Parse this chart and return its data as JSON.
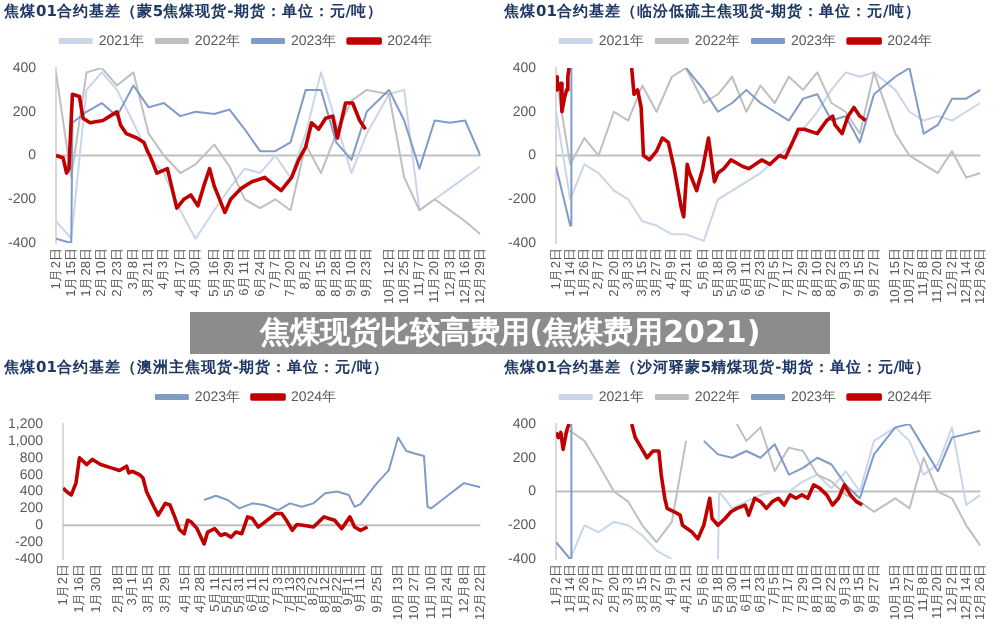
{
  "chart_data": [
    {
      "type": "line",
      "title": "焦煤01合约基差（蒙5焦煤现货-期货：单位：元/吨）",
      "legend": "top",
      "xlim": [
        "--01-02",
        "--12-29"
      ],
      "ylim": [
        -400,
        400
      ],
      "yticks": [
        -400,
        -200,
        0,
        200,
        400
      ],
      "xticks": [
        {
          "value": "--01-02",
          "label": "1月2日"
        },
        {
          "value": "--01-15",
          "label": "1月15日"
        },
        {
          "value": "--01-28",
          "label": "1月28日"
        },
        {
          "value": "--02-10",
          "label": "2月10日"
        },
        {
          "value": "--02-23",
          "label": "2月23日"
        },
        {
          "value": "--03-08",
          "label": "3月8日"
        },
        {
          "value": "--03-21",
          "label": "3月21日"
        },
        {
          "value": "--04-03",
          "label": "4月3日"
        },
        {
          "value": "--04-17",
          "label": "4月17日"
        },
        {
          "value": "--04-30",
          "label": "4月30日"
        },
        {
          "value": "--05-16",
          "label": "5月16日"
        },
        {
          "value": "--05-29",
          "label": "5月29日"
        },
        {
          "value": "--06-11",
          "label": "6月11日"
        },
        {
          "value": "--06-24",
          "label": "6月24日"
        },
        {
          "value": "--07-07",
          "label": "7月7日"
        },
        {
          "value": "--07-20",
          "label": "7月20日"
        },
        {
          "value": "--08-02",
          "label": "8月2日"
        },
        {
          "value": "--08-15",
          "label": "8月15日"
        },
        {
          "value": "--08-28",
          "label": "8月28日"
        },
        {
          "value": "--09-10",
          "label": "9月10日"
        },
        {
          "value": "--09-23",
          "label": "9月23日"
        },
        {
          "value": "--10-12",
          "label": "10月12日"
        },
        {
          "value": "--10-25",
          "label": "10月25日"
        },
        {
          "value": "--11-07",
          "label": "11月7日"
        },
        {
          "value": "--11-20",
          "label": "11月20日"
        },
        {
          "value": "--12-03",
          "label": "12月3日"
        },
        {
          "value": "--12-16",
          "label": "12月16日"
        },
        {
          "value": "--12-29",
          "label": "12月29日"
        }
      ],
      "ref_lines": [
        {
          "axis": "y",
          "value": 0,
          "color": "#bfbfbf"
        }
      ],
      "series": [
        {
          "name": "2021年",
          "color": "#c9d6ea",
          "x": [
            "--01-02",
            "--01-15",
            "--01-28",
            "--02-10",
            "--02-23",
            "--03-08",
            "--03-21",
            "--04-03",
            "--04-17",
            "--04-30",
            "--05-16",
            "--05-29",
            "--06-11",
            "--06-24",
            "--07-07",
            "--07-20",
            "--08-02",
            "--08-15",
            "--08-28",
            "--09-10",
            "--09-23",
            "--10-12",
            "--10-25",
            "--11-07",
            "--11-20",
            "--12-03",
            "--12-16",
            "--12-29"
          ],
          "values": [
            -300,
            -380,
            300,
            380,
            300,
            150,
            0,
            -80,
            -250,
            -380,
            -250,
            -150,
            -60,
            -80,
            0,
            -100,
            100,
            380,
            150,
            -80,
            100,
            280,
            300,
            -250,
            -200,
            -150,
            -100,
            -50
          ]
        },
        {
          "name": "2022年",
          "color": "#bfbfbf",
          "x": [
            "--01-02",
            "--01-15",
            "--01-28",
            "--02-10",
            "--02-23",
            "--03-08",
            "--03-21",
            "--04-03",
            "--04-17",
            "--04-30",
            "--05-16",
            "--05-29",
            "--06-11",
            "--06-24",
            "--07-07",
            "--07-20",
            "--08-02",
            "--08-15",
            "--08-28",
            "--09-10",
            "--09-23",
            "--10-12",
            "--10-25",
            "--11-07",
            "--11-20",
            "--12-03",
            "--12-16",
            "--12-29"
          ],
          "values": [
            380,
            -100,
            380,
            400,
            320,
            380,
            100,
            0,
            -80,
            -40,
            50,
            -50,
            -200,
            -240,
            -200,
            -250,
            50,
            -80,
            100,
            250,
            300,
            280,
            -100,
            -250,
            -200,
            -250,
            -300,
            -360
          ]
        },
        {
          "name": "2023年",
          "color": "#7f9cc8",
          "x": [
            "--01-02",
            "--01-15",
            "--01-16",
            "--01-28",
            "--02-10",
            "--02-23",
            "--03-08",
            "--03-21",
            "--04-03",
            "--04-17",
            "--04-30",
            "--05-16",
            "--05-29",
            "--06-11",
            "--06-24",
            "--07-07",
            "--07-20",
            "--08-02",
            "--08-15",
            "--08-28",
            "--09-10",
            "--09-23",
            "--10-12",
            "--10-25",
            "--11-07",
            "--11-20",
            "--12-03",
            "--12-16",
            "--12-29"
          ],
          "values": [
            -380,
            -400,
            150,
            200,
            240,
            180,
            320,
            220,
            240,
            180,
            200,
            190,
            210,
            120,
            20,
            20,
            60,
            300,
            300,
            60,
            -20,
            200,
            300,
            160,
            -60,
            160,
            150,
            160,
            0
          ]
        },
        {
          "name": "2024年",
          "color": "#c00000",
          "x": [
            "--01-02",
            "--01-08",
            "--01-11",
            "--01-13",
            "--01-16",
            "--01-22",
            "--01-25",
            "--01-31",
            "--02-11",
            "--02-17",
            "--02-23",
            "--02-26",
            "--03-02",
            "--03-11",
            "--03-17",
            "--03-20",
            "--03-22",
            "--03-28",
            "--04-06",
            "--04-14",
            "--04-20",
            "--04-26",
            "--05-02",
            "--05-07",
            "--05-12",
            "--05-16",
            "--05-25",
            "--05-30",
            "--06-08",
            "--06-17",
            "--06-28",
            "--07-07",
            "--07-12",
            "--07-21",
            "--07-27",
            "--08-02",
            "--08-07",
            "--08-13",
            "--08-19",
            "--08-25",
            "--08-29",
            "--09-05",
            "--09-11",
            "--09-17",
            "--09-22"
          ],
          "values": [
            0,
            -10,
            -80,
            -60,
            280,
            270,
            170,
            150,
            160,
            180,
            200,
            140,
            100,
            80,
            60,
            20,
            0,
            -80,
            -60,
            -240,
            -200,
            -180,
            -230,
            -140,
            -60,
            -140,
            -260,
            -200,
            -150,
            -120,
            -100,
            -140,
            -160,
            -100,
            -20,
            40,
            150,
            120,
            170,
            180,
            80,
            240,
            240,
            160,
            120
          ]
        }
      ]
    },
    {
      "type": "line",
      "title": "焦煤01合约基差（临汾低硫主焦现货-期货：单位：元/吨）",
      "legend": "top",
      "xlim": [
        "--01-02",
        "--12-26"
      ],
      "ylim": [
        -400,
        400
      ],
      "yticks": [
        -400,
        -200,
        0,
        200,
        400
      ],
      "xticks": [
        {
          "value": "--01-02",
          "label": "1月2日"
        },
        {
          "value": "--01-14",
          "label": "1月14日"
        },
        {
          "value": "--01-26",
          "label": "1月26日"
        },
        {
          "value": "--02-07",
          "label": "2月7日"
        },
        {
          "value": "--02-20",
          "label": "2月20日"
        },
        {
          "value": "--03-03",
          "label": "3月3日"
        },
        {
          "value": "--03-15",
          "label": "3月15日"
        },
        {
          "value": "--03-27",
          "label": "3月27日"
        },
        {
          "value": "--04-09",
          "label": "4月9日"
        },
        {
          "value": "--04-21",
          "label": "4月21日"
        },
        {
          "value": "--05-06",
          "label": "5月6日"
        },
        {
          "value": "--05-18",
          "label": "5月18日"
        },
        {
          "value": "--05-30",
          "label": "5月30日"
        },
        {
          "value": "--06-11",
          "label": "6月11日"
        },
        {
          "value": "--06-23",
          "label": "6月23日"
        },
        {
          "value": "--07-05",
          "label": "7月5日"
        },
        {
          "value": "--07-17",
          "label": "7月17日"
        },
        {
          "value": "--07-29",
          "label": "7月29日"
        },
        {
          "value": "--08-10",
          "label": "8月10日"
        },
        {
          "value": "--08-22",
          "label": "8月22日"
        },
        {
          "value": "--09-03",
          "label": "9月3日"
        },
        {
          "value": "--09-15",
          "label": "9月15日"
        },
        {
          "value": "--09-27",
          "label": "9月27日"
        },
        {
          "value": "--10-15",
          "label": "10月15日"
        },
        {
          "value": "--10-27",
          "label": "10月27日"
        },
        {
          "value": "--11-08",
          "label": "11月8日"
        },
        {
          "value": "--11-20",
          "label": "11月20日"
        },
        {
          "value": "--12-02",
          "label": "12月2日"
        },
        {
          "value": "--12-14",
          "label": "12月14日"
        },
        {
          "value": "--12-26",
          "label": "12月26日"
        }
      ],
      "ref_lines": [
        {
          "axis": "y",
          "value": 0,
          "color": "#bfbfbf"
        }
      ],
      "series": [
        {
          "name": "2021年",
          "color": "#c9d6ea",
          "x": [
            "--01-02",
            "--01-14",
            "--01-26",
            "--02-07",
            "--02-20",
            "--03-03",
            "--03-15",
            "--03-27",
            "--04-09",
            "--04-21",
            "--05-06",
            "--05-18",
            "--05-30",
            "--06-11",
            "--06-23",
            "--07-05",
            "--07-17",
            "--07-29",
            "--08-10",
            "--08-22",
            "--09-03",
            "--09-15",
            "--09-27",
            "--10-15",
            "--10-27",
            "--11-08",
            "--11-20",
            "--12-02",
            "--12-14",
            "--12-26"
          ],
          "values": [
            200,
            -200,
            -40,
            -80,
            -160,
            -200,
            -300,
            -320,
            -360,
            -360,
            -390,
            -200,
            -160,
            -120,
            -80,
            -20,
            40,
            120,
            200,
            300,
            380,
            360,
            380,
            300,
            200,
            160,
            180,
            160,
            200,
            240
          ]
        },
        {
          "name": "2022年",
          "color": "#bfbfbf",
          "x": [
            "--01-02",
            "--01-14",
            "--01-26",
            "--02-07",
            "--02-20",
            "--03-03",
            "--03-15",
            "--03-27",
            "--04-09",
            "--04-21",
            "--05-06",
            "--05-18",
            "--05-30",
            "--06-11",
            "--06-23",
            "--07-05",
            "--07-17",
            "--07-29",
            "--08-10",
            "--08-22",
            "--09-03",
            "--09-15",
            "--09-27",
            "--10-15",
            "--10-27",
            "--11-08",
            "--11-20",
            "--12-02",
            "--12-14",
            "--12-26"
          ],
          "values": [
            360,
            -40,
            80,
            0,
            200,
            160,
            320,
            200,
            360,
            400,
            240,
            280,
            360,
            200,
            320,
            240,
            360,
            300,
            380,
            240,
            200,
            100,
            380,
            100,
            0,
            -40,
            -80,
            20,
            -100,
            -80
          ]
        },
        {
          "name": "2023年",
          "color": "#7f9cc8",
          "x": [
            "--01-02",
            "--01-14",
            "--01-15",
            "--02-20",
            "--04-21",
            "--05-06",
            "--05-18",
            "--05-30",
            "--06-11",
            "--06-23",
            "--07-05",
            "--07-17",
            "--07-29",
            "--08-10",
            "--08-22",
            "--09-03",
            "--09-15",
            "--09-27",
            "--10-15",
            "--10-27",
            "--11-08",
            "--11-20",
            "--12-02",
            "--12-14",
            "--12-26"
          ],
          "values": [
            -50,
            -320,
            400,
            null,
            400,
            300,
            200,
            240,
            300,
            240,
            200,
            160,
            260,
            280,
            160,
            180,
            60,
            280,
            360,
            400,
            100,
            140,
            260,
            260,
            300
          ]
        },
        {
          "name": "2024年",
          "color": "#c00000",
          "x": [
            "--01-02",
            "--01-03",
            "--01-06",
            "--01-07",
            "--01-09",
            "--01-11",
            "--01-12",
            "--01-13",
            "--02-10",
            "--03-06",
            "--03-08",
            "--03-11",
            "--03-14",
            "--03-16",
            "--03-21",
            "--03-27",
            "--04-01",
            "--04-06",
            "--04-11",
            "--04-17",
            "--04-19",
            "--04-22",
            "--04-24",
            "--04-30",
            "--05-05",
            "--05-10",
            "--05-15",
            "--05-18",
            "--05-23",
            "--05-29",
            "--06-08",
            "--06-13",
            "--06-24",
            "--07-01",
            "--07-09",
            "--07-14",
            "--07-20",
            "--07-25",
            "--07-30",
            "--08-10",
            "--08-18",
            "--08-23",
            "--08-25",
            "--08-31",
            "--09-05",
            "--09-10",
            "--09-15",
            "--09-20"
          ],
          "values": [
            360,
            300,
            330,
            200,
            260,
            300,
            360,
            400,
            null,
            400,
            280,
            300,
            220,
            0,
            -20,
            20,
            80,
            60,
            -60,
            -240,
            -280,
            -40,
            -80,
            -160,
            -60,
            80,
            -120,
            -80,
            -60,
            -20,
            -50,
            -60,
            -20,
            -40,
            0,
            -10,
            60,
            120,
            120,
            100,
            160,
            180,
            140,
            100,
            180,
            220,
            180,
            160
          ]
        }
      ]
    },
    {
      "type": "other",
      "title": "焦煤现货比较高费用(焦煤费用2021)"
    },
    {
      "type": "line",
      "title": "焦煤01合约基差（澳洲主焦现货-期货：单位：元/吨）",
      "legend": "top",
      "xlim": [
        "--01-02",
        "--12-22"
      ],
      "ylim": [
        -400,
        1200
      ],
      "yticks": [
        -400,
        -200,
        0,
        200,
        400,
        600,
        800,
        {
          "value": 1000,
          "label": "1,000"
        },
        {
          "value": 1200,
          "label": "1,200"
        }
      ],
      "xticks": [
        {
          "value": "--01-02",
          "label": "1月2日"
        },
        {
          "value": "--01-16",
          "label": "1月16日"
        },
        {
          "value": "--01-30",
          "label": "1月30日"
        },
        {
          "value": "--02-18",
          "label": "2月18日"
        },
        {
          "value": "--03-01",
          "label": "3月1日"
        },
        {
          "value": "--03-15",
          "label": "3月15日"
        },
        {
          "value": "--03-29",
          "label": "3月29日"
        },
        {
          "value": "--04-15",
          "label": "4月15日"
        },
        {
          "value": "--04-28",
          "label": "4月28日"
        },
        {
          "value": "--05-11",
          "label": "5月11日"
        },
        {
          "value": "--05-21",
          "label": "5月21日"
        },
        {
          "value": "--05-31",
          "label": "5月31日"
        },
        {
          "value": "--06-11",
          "label": "6月11日"
        },
        {
          "value": "--06-21",
          "label": "6月21日"
        },
        {
          "value": "--07-03",
          "label": "7月3日"
        },
        {
          "value": "--07-13",
          "label": "7月13日"
        },
        {
          "value": "--07-23",
          "label": "7月23日"
        },
        {
          "value": "--08-02",
          "label": "8月2日"
        },
        {
          "value": "--08-12",
          "label": "8月12日"
        },
        {
          "value": "--08-22",
          "label": "8月22日"
        },
        {
          "value": "--09-01",
          "label": "9月1日"
        },
        {
          "value": "--09-11",
          "label": "9月11日"
        },
        {
          "value": "--09-25",
          "label": "9月25日"
        },
        {
          "value": "--10-13",
          "label": "10月13日"
        },
        {
          "value": "--10-27",
          "label": "10月27日"
        },
        {
          "value": "--11-10",
          "label": "11月10日"
        },
        {
          "value": "--11-24",
          "label": "11月24日"
        },
        {
          "value": "--12-08",
          "label": "12月8日"
        },
        {
          "value": "--12-22",
          "label": "12月22日"
        }
      ],
      "ref_lines": [
        {
          "axis": "y",
          "value": 0,
          "color": "#bfbfbf"
        }
      ],
      "series": [
        {
          "name": "2023年",
          "color": "#7f9cc8",
          "x": [
            "--05-01",
            "--05-11",
            "--05-21",
            "--05-31",
            "--06-11",
            "--06-21",
            "--07-03",
            "--07-13",
            "--07-23",
            "--08-02",
            "--08-12",
            "--08-22",
            "--09-01",
            "--09-06",
            "--09-11",
            "--09-25",
            "--10-05",
            "--10-13",
            "--10-20",
            "--10-27",
            "--11-04",
            "--11-07",
            "--11-10",
            "--11-24",
            "--12-08",
            "--12-22"
          ],
          "values": [
            300,
            350,
            300,
            200,
            260,
            240,
            180,
            260,
            220,
            260,
            380,
            400,
            360,
            220,
            250,
            500,
            650,
            1040,
            880,
            850,
            820,
            220,
            200,
            350,
            500,
            450
          ]
        },
        {
          "name": "2024年",
          "color": "#c00000",
          "x": [
            "--01-02",
            "--01-05",
            "--01-09",
            "--01-13",
            "--01-16",
            "--01-19",
            "--01-22",
            "--01-27",
            "--02-03",
            "--02-12",
            "--02-19",
            "--02-25",
            "--02-27",
            "--03-01",
            "--03-07",
            "--03-10",
            "--03-13",
            "--03-20",
            "--03-23",
            "--03-29",
            "--04-02",
            "--04-06",
            "--04-10",
            "--04-14",
            "--04-17",
            "--04-20",
            "--04-25",
            "--05-01",
            "--05-04",
            "--05-10",
            "--05-15",
            "--05-19",
            "--05-24",
            "--05-28",
            "--06-02",
            "--06-07",
            "--06-11",
            "--06-16",
            "--06-20",
            "--07-01",
            "--07-06",
            "--07-10",
            "--07-15",
            "--07-19",
            "--07-24",
            "--08-02",
            "--08-11",
            "--08-15",
            "--08-20",
            "--08-26",
            "--09-02",
            "--09-06",
            "--09-11",
            "--09-17"
          ],
          "values": [
            440,
            400,
            360,
            500,
            800,
            760,
            720,
            780,
            720,
            680,
            650,
            700,
            620,
            640,
            600,
            560,
            400,
            200,
            120,
            260,
            240,
            100,
            -50,
            -100,
            60,
            40,
            -40,
            -220,
            -80,
            -40,
            -120,
            -100,
            -140,
            -80,
            -100,
            100,
            80,
            -20,
            20,
            140,
            140,
            60,
            -60,
            10,
            0,
            -20,
            100,
            80,
            60,
            -40,
            100,
            -20,
            -60,
            -20
          ]
        }
      ]
    },
    {
      "type": "line",
      "title": "焦煤01合约基差（沙河驿蒙5精煤现货-期货：单位：元/吨）",
      "legend": "top",
      "xlim": [
        "--01-02",
        "--12-26"
      ],
      "ylim": [
        -400,
        400
      ],
      "yticks": [
        -400,
        -200,
        0,
        200,
        400
      ],
      "xticks": [
        {
          "value": "--01-02",
          "label": "1月2日"
        },
        {
          "value": "--01-14",
          "label": "1月14日"
        },
        {
          "value": "--01-26",
          "label": "1月26日"
        },
        {
          "value": "--02-07",
          "label": "2月7日"
        },
        {
          "value": "--02-20",
          "label": "2月20日"
        },
        {
          "value": "--03-03",
          "label": "3月3日"
        },
        {
          "value": "--03-15",
          "label": "3月15日"
        },
        {
          "value": "--03-27",
          "label": "3月27日"
        },
        {
          "value": "--04-09",
          "label": "4月9日"
        },
        {
          "value": "--04-21",
          "label": "4月21日"
        },
        {
          "value": "--05-06",
          "label": "5月6日"
        },
        {
          "value": "--05-18",
          "label": "5月18日"
        },
        {
          "value": "--05-30",
          "label": "5月30日"
        },
        {
          "value": "--06-11",
          "label": "6月11日"
        },
        {
          "value": "--06-23",
          "label": "6月23日"
        },
        {
          "value": "--07-05",
          "label": "7月5日"
        },
        {
          "value": "--07-17",
          "label": "7月17日"
        },
        {
          "value": "--07-29",
          "label": "7月29日"
        },
        {
          "value": "--08-10",
          "label": "8月10日"
        },
        {
          "value": "--08-22",
          "label": "8月22日"
        },
        {
          "value": "--09-03",
          "label": "9月3日"
        },
        {
          "value": "--09-15",
          "label": "9月15日"
        },
        {
          "value": "--09-27",
          "label": "9月27日"
        },
        {
          "value": "--10-15",
          "label": "10月15日"
        },
        {
          "value": "--10-27",
          "label": "10月27日"
        },
        {
          "value": "--11-08",
          "label": "11月8日"
        },
        {
          "value": "--11-20",
          "label": "11月20日"
        },
        {
          "value": "--12-02",
          "label": "12月2日"
        },
        {
          "value": "--12-14",
          "label": "12月14日"
        },
        {
          "value": "--12-26",
          "label": "12月26日"
        }
      ],
      "ref_lines": [
        {
          "axis": "y",
          "value": 0,
          "color": "#bfbfbf"
        }
      ],
      "series": [
        {
          "name": "2021年",
          "color": "#c9d6ea",
          "x": [
            "--01-02",
            "--01-14",
            "--01-26",
            "--02-07",
            "--02-20",
            "--03-03",
            "--03-15",
            "--03-27",
            "--04-09",
            "--05-01",
            "--05-18",
            "--05-19",
            "--05-30",
            "--06-11",
            "--06-23",
            "--07-05",
            "--07-17",
            "--07-29",
            "--08-10",
            "--08-22",
            "--09-03",
            "--09-15",
            "--09-27",
            "--10-15",
            "--10-27",
            "--11-08",
            "--11-20",
            "--12-02",
            "--12-14",
            "--12-26"
          ],
          "values": [
            -300,
            -400,
            -200,
            -240,
            -180,
            -200,
            -260,
            -350,
            -400,
            null,
            -400,
            0,
            -100,
            -60,
            -20,
            0,
            0,
            60,
            100,
            20,
            120,
            0,
            300,
            380,
            300,
            100,
            160,
            380,
            -80,
            -20
          ]
        },
        {
          "name": "2022年",
          "color": "#bfbfbf",
          "x": [
            "--01-02",
            "--01-14",
            "--01-26",
            "--02-07",
            "--02-20",
            "--03-03",
            "--03-15",
            "--03-27",
            "--04-09",
            "--04-21",
            "--05-10",
            "--06-03",
            "--06-11",
            "--06-23",
            "--07-05",
            "--07-17",
            "--07-29",
            "--08-10",
            "--08-22",
            "--09-03",
            "--09-15",
            "--09-27",
            "--10-15",
            "--10-27",
            "--11-08",
            "--11-20",
            "--12-02",
            "--12-14",
            "--12-26"
          ],
          "values": [
            320,
            360,
            300,
            160,
            0,
            -60,
            -200,
            -300,
            -180,
            300,
            null,
            400,
            300,
            380,
            120,
            260,
            240,
            100,
            60,
            -20,
            -60,
            -120,
            -40,
            -100,
            200,
            0,
            -40,
            -200,
            -320
          ]
        },
        {
          "name": "2023年",
          "color": "#7f9cc8",
          "x": [
            "--01-02",
            "--01-14",
            "--01-15",
            "--03-01",
            "--05-06",
            "--05-18",
            "--05-30",
            "--06-11",
            "--06-23",
            "--07-05",
            "--07-17",
            "--07-29",
            "--08-10",
            "--08-22",
            "--09-03",
            "--09-15",
            "--09-27",
            "--10-15",
            "--10-27",
            "--11-08",
            "--11-20",
            "--12-02",
            "--12-14",
            "--12-26"
          ],
          "values": [
            -300,
            -400,
            400,
            null,
            300,
            220,
            200,
            240,
            200,
            280,
            100,
            140,
            200,
            160,
            40,
            -40,
            220,
            380,
            400,
            260,
            120,
            320,
            340,
            360
          ]
        },
        {
          "name": "2024年",
          "color": "#c00000",
          "x": [
            "--01-02",
            "--01-04",
            "--01-06",
            "--01-08",
            "--01-11",
            "--01-13",
            "--02-10",
            "--03-06",
            "--03-09",
            "--03-14",
            "--03-19",
            "--03-24",
            "--03-29",
            "--03-31",
            "--04-03",
            "--04-05",
            "--04-11",
            "--04-16",
            "--04-18",
            "--04-26",
            "--05-01",
            "--05-06",
            "--05-11",
            "--05-13",
            "--05-18",
            "--05-24",
            "--05-29",
            "--06-03",
            "--06-10",
            "--06-13",
            "--06-18",
            "--06-23",
            "--06-28",
            "--07-03",
            "--07-08",
            "--07-13",
            "--07-18",
            "--07-23",
            "--07-28",
            "--08-02",
            "--08-07",
            "--08-12",
            "--08-18",
            "--08-23",
            "--08-28",
            "--09-02",
            "--09-07",
            "--09-12",
            "--09-17"
          ],
          "values": [
            350,
            320,
            350,
            250,
            360,
            400,
            null,
            400,
            320,
            260,
            200,
            240,
            240,
            100,
            -40,
            -100,
            -120,
            -140,
            -200,
            -240,
            -280,
            -200,
            -40,
            -160,
            -200,
            -160,
            -120,
            -100,
            -80,
            -140,
            -40,
            -60,
            -100,
            -60,
            -40,
            -80,
            -20,
            -40,
            -20,
            -40,
            40,
            20,
            -20,
            -80,
            -40,
            40,
            -20,
            -60,
            -80
          ]
        }
      ]
    }
  ]
}
